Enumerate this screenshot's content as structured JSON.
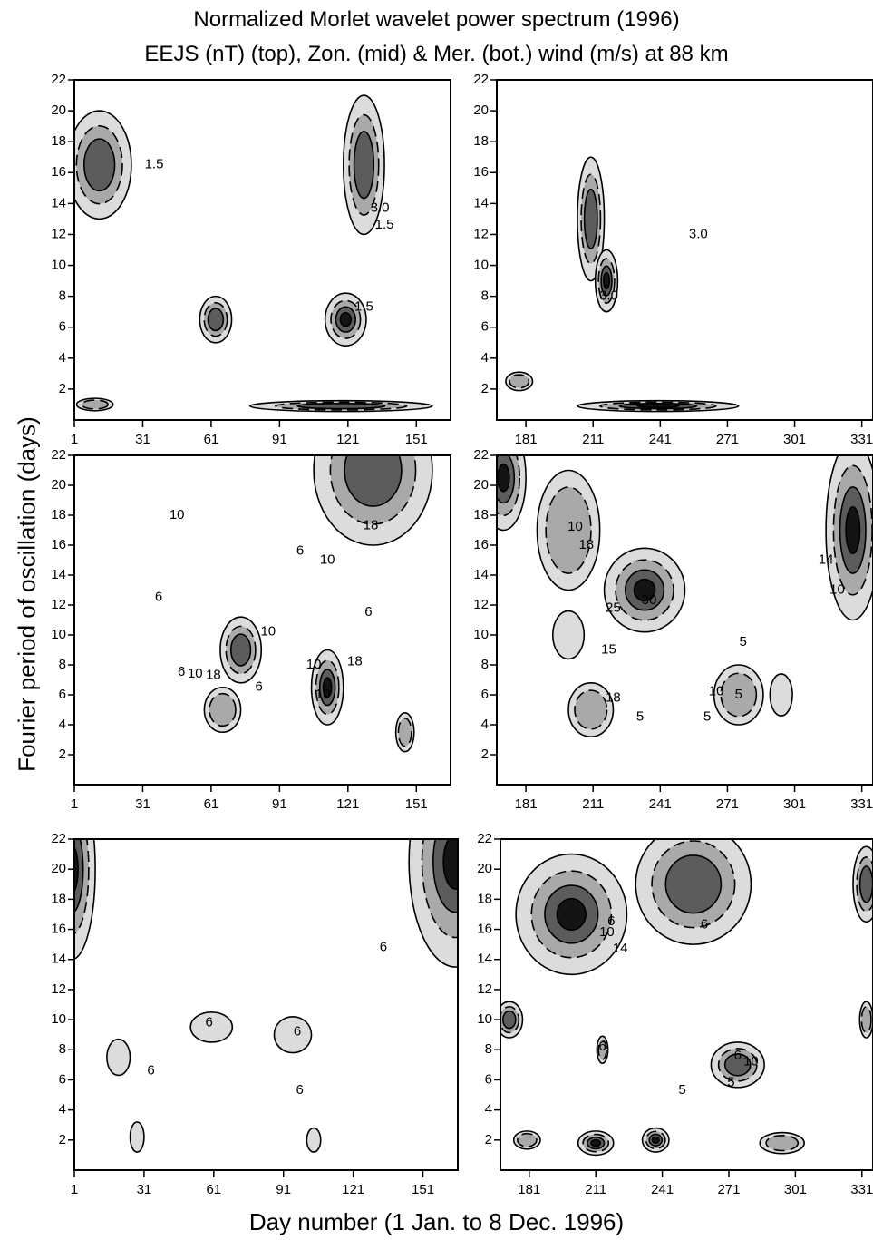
{
  "title": "Normalized Morlet wavelet power spectrum (1996)",
  "subtitle": "EEJS (nT) (top), Zon. (mid) & Mer. (bot.) wind (m/s) at 88 km",
  "ylabel": "Fourier period of oscillation (days)",
  "xlabel": "Day number (1 Jan. to 8 Dec. 1996)",
  "colors": {
    "shade_light": "#dcdcdc",
    "shade_mid": "#a9a9a9",
    "shade_dark": "#5c5c5c",
    "shade_darkest": "#141414",
    "line": "#000000"
  },
  "chart_data": [
    {
      "type": "heatmap",
      "panel": "top-left",
      "variable": "EEJS (nT)",
      "xlim": [
        1,
        166
      ],
      "ylim": [
        0,
        22
      ],
      "xticks": [
        "1",
        "31",
        "61",
        "91",
        "121",
        "151"
      ],
      "yticks": [
        "2",
        "4",
        "6",
        "8",
        "10",
        "12",
        "14",
        "16",
        "18",
        "20",
        "22"
      ],
      "peaks": [
        {
          "x": 12,
          "y": 16.5,
          "sx": 14,
          "sy": 3.5,
          "level": 2.5
        },
        {
          "x": 128,
          "y": 16.5,
          "sx": 9,
          "sy": 4.5,
          "level": 2.4
        },
        {
          "x": 120,
          "y": 6.5,
          "sx": 9,
          "sy": 1.7,
          "level": 4
        },
        {
          "x": 63,
          "y": 6.5,
          "sx": 7,
          "sy": 1.5,
          "level": 2.6
        },
        {
          "x": 118,
          "y": 0.9,
          "sx": 40,
          "sy": 0.35,
          "level": 3
        },
        {
          "x": 10,
          "y": 1,
          "sx": 8,
          "sy": 0.4,
          "level": 1.5
        }
      ],
      "contour_labels": [
        {
          "text": "1.5",
          "x": 36,
          "y": 16.5
        },
        {
          "text": "3.0",
          "x": 135,
          "y": 13.7
        },
        {
          "text": "1.5",
          "x": 137,
          "y": 12.6
        },
        {
          "text": "1.5",
          "x": 128,
          "y": 7.3
        }
      ]
    },
    {
      "type": "heatmap",
      "panel": "top-right",
      "variable": "EEJS (nT)",
      "xlim": [
        168,
        336
      ],
      "ylim": [
        0,
        22
      ],
      "xticks": [
        "181",
        "211",
        "241",
        "271",
        "301",
        "331"
      ],
      "yticks": [
        "2",
        "4",
        "6",
        "8",
        "10",
        "12",
        "14",
        "16",
        "18",
        "20",
        "22"
      ],
      "peaks": [
        {
          "x": 210,
          "y": 13,
          "sx": 6,
          "sy": 4,
          "level": 2.4
        },
        {
          "x": 217,
          "y": 9,
          "sx": 5,
          "sy": 2,
          "level": 3.2
        },
        {
          "x": 240,
          "y": 0.9,
          "sx": 36,
          "sy": 0.35,
          "level": 3
        },
        {
          "x": 178,
          "y": 2.5,
          "sx": 6,
          "sy": 0.6,
          "level": 1.6
        }
      ],
      "contour_labels": [
        {
          "text": "3.0",
          "x": 258,
          "y": 12
        },
        {
          "text": "3.0",
          "x": 218,
          "y": 8
        }
      ]
    },
    {
      "type": "heatmap",
      "panel": "middle-left",
      "variable": "Zonal wind (m/s)",
      "xlim": [
        1,
        166
      ],
      "ylim": [
        0,
        22
      ],
      "xticks": [
        "1",
        "31",
        "61",
        "91",
        "121",
        "151"
      ],
      "yticks": [
        "2",
        "4",
        "6",
        "8",
        "10",
        "12",
        "14",
        "16",
        "18",
        "20",
        "22"
      ],
      "peaks": [
        {
          "x": 132,
          "y": 21,
          "sx": 26,
          "sy": 5,
          "level": 28
        },
        {
          "x": 74,
          "y": 9,
          "sx": 9,
          "sy": 2.2,
          "level": 24
        },
        {
          "x": 112,
          "y": 6.5,
          "sx": 7,
          "sy": 2.5,
          "level": 36
        },
        {
          "x": 66,
          "y": 5,
          "sx": 8,
          "sy": 1.5,
          "level": 11
        },
        {
          "x": 146,
          "y": 3.5,
          "sx": 4,
          "sy": 1.3,
          "level": 11
        }
      ],
      "contour_labels": [
        {
          "text": "10",
          "x": 46,
          "y": 18
        },
        {
          "text": "18",
          "x": 131,
          "y": 17.3
        },
        {
          "text": "6",
          "x": 100,
          "y": 15.6
        },
        {
          "text": "10",
          "x": 112,
          "y": 15
        },
        {
          "text": "6",
          "x": 130,
          "y": 11.5
        },
        {
          "text": "6",
          "x": 38,
          "y": 12.5
        },
        {
          "text": "10",
          "x": 86,
          "y": 10.2
        },
        {
          "text": "6",
          "x": 48,
          "y": 7.5
        },
        {
          "text": "10",
          "x": 54,
          "y": 7.4
        },
        {
          "text": "18",
          "x": 62,
          "y": 7.3
        },
        {
          "text": "6",
          "x": 82,
          "y": 6.5
        },
        {
          "text": "10",
          "x": 106,
          "y": 8
        },
        {
          "text": "18",
          "x": 124,
          "y": 8.2
        },
        {
          "text": "10",
          "x": 110,
          "y": 6
        }
      ]
    },
    {
      "type": "heatmap",
      "panel": "middle-right",
      "variable": "Zonal wind (m/s)",
      "xlim": [
        168,
        336
      ],
      "ylim": [
        0,
        22
      ],
      "xticks": [
        "181",
        "211",
        "241",
        "271",
        "301",
        "331"
      ],
      "yticks": [
        "2",
        "4",
        "6",
        "8",
        "10",
        "12",
        "14",
        "16",
        "18",
        "20",
        "22"
      ],
      "peaks": [
        {
          "x": 171,
          "y": 20.5,
          "sx": 10,
          "sy": 3.5,
          "level": 38
        },
        {
          "x": 200,
          "y": 17,
          "sx": 14,
          "sy": 4,
          "level": 18
        },
        {
          "x": 234,
          "y": 13,
          "sx": 18,
          "sy": 2.8,
          "level": 32
        },
        {
          "x": 327,
          "y": 17,
          "sx": 12,
          "sy": 6,
          "level": 34
        },
        {
          "x": 210,
          "y": 5,
          "sx": 10,
          "sy": 1.8,
          "level": 14
        },
        {
          "x": 276,
          "y": 6,
          "sx": 11,
          "sy": 2,
          "level": 13
        },
        {
          "x": 295,
          "y": 6,
          "sx": 5,
          "sy": 1.4,
          "level": 9
        },
        {
          "x": 200,
          "y": 10,
          "sx": 7,
          "sy": 1.6,
          "level": 8
        }
      ],
      "contour_labels": [
        {
          "text": "10",
          "x": 203,
          "y": 17.2
        },
        {
          "text": "18",
          "x": 208,
          "y": 16
        },
        {
          "text": "25",
          "x": 220,
          "y": 11.8
        },
        {
          "text": "30",
          "x": 236,
          "y": 12.3
        },
        {
          "text": "15",
          "x": 218,
          "y": 9
        },
        {
          "text": "14",
          "x": 315,
          "y": 15
        },
        {
          "text": "10",
          "x": 320,
          "y": 13
        },
        {
          "text": "5",
          "x": 278,
          "y": 9.5
        },
        {
          "text": "10",
          "x": 266,
          "y": 6.2
        },
        {
          "text": "5",
          "x": 276,
          "y": 6
        },
        {
          "text": "5",
          "x": 262,
          "y": 4.5
        },
        {
          "text": "18",
          "x": 220,
          "y": 5.8
        },
        {
          "text": "5",
          "x": 232,
          "y": 4.5
        }
      ]
    },
    {
      "type": "heatmap",
      "panel": "bottom-left",
      "variable": "Meridional wind (m/s)",
      "xlim": [
        1,
        166
      ],
      "ylim": [
        0,
        22
      ],
      "xticks": [
        "1",
        "31",
        "61",
        "91",
        "121",
        "151"
      ],
      "yticks": [
        "2",
        "4",
        "6",
        "8",
        "10",
        "12",
        "14",
        "16",
        "18",
        "20",
        "22"
      ],
      "peaks": [
        {
          "x": 0,
          "y": 20,
          "sx": 10,
          "sy": 6,
          "level": 36
        },
        {
          "x": 165,
          "y": 20.5,
          "sx": 20,
          "sy": 7,
          "level": 42
        },
        {
          "x": 20,
          "y": 7.5,
          "sx": 5,
          "sy": 1.2,
          "level": 9
        },
        {
          "x": 28,
          "y": 2.2,
          "sx": 3,
          "sy": 1,
          "level": 12
        },
        {
          "x": 104,
          "y": 2,
          "sx": 3,
          "sy": 0.8,
          "level": 11
        },
        {
          "x": 95,
          "y": 9,
          "sx": 8,
          "sy": 1.2,
          "level": 7
        },
        {
          "x": 60,
          "y": 9.5,
          "sx": 9,
          "sy": 1,
          "level": 7
        }
      ],
      "contour_labels": [
        {
          "text": "6",
          "x": 134,
          "y": 14.8
        },
        {
          "text": "6",
          "x": 59,
          "y": 9.8
        },
        {
          "text": "6",
          "x": 97,
          "y": 9.2
        },
        {
          "text": "6",
          "x": 34,
          "y": 6.6
        },
        {
          "text": "6",
          "x": 98,
          "y": 5.3
        }
      ]
    },
    {
      "type": "heatmap",
      "panel": "bottom-right",
      "variable": "Meridional wind (m/s)",
      "xlim": [
        168,
        336
      ],
      "ylim": [
        0,
        22
      ],
      "xticks": [
        "181",
        "211",
        "241",
        "271",
        "301",
        "331"
      ],
      "yticks": [
        "2",
        "4",
        "6",
        "8",
        "10",
        "12",
        "14",
        "16",
        "18",
        "20",
        "22"
      ],
      "peaks": [
        {
          "x": 200,
          "y": 17,
          "sx": 25,
          "sy": 4,
          "level": 14
        },
        {
          "x": 255,
          "y": 19,
          "sx": 26,
          "sy": 4,
          "level": 8
        },
        {
          "x": 172,
          "y": 10,
          "sx": 6,
          "sy": 1.2,
          "level": 9
        },
        {
          "x": 275,
          "y": 7,
          "sx": 12,
          "sy": 1.5,
          "level": 10
        },
        {
          "x": 211,
          "y": 1.8,
          "sx": 8,
          "sy": 0.8,
          "level": 12
        },
        {
          "x": 238,
          "y": 2,
          "sx": 6,
          "sy": 0.8,
          "level": 12
        },
        {
          "x": 333,
          "y": 19,
          "sx": 6,
          "sy": 2.5,
          "level": 10
        },
        {
          "x": 333,
          "y": 10,
          "sx": 3,
          "sy": 1.2,
          "level": 7
        },
        {
          "x": 295,
          "y": 1.8,
          "sx": 10,
          "sy": 0.7,
          "level": 7
        },
        {
          "x": 180,
          "y": 2,
          "sx": 6,
          "sy": 0.6,
          "level": 7
        },
        {
          "x": 214,
          "y": 8,
          "sx": 2.5,
          "sy": 0.9,
          "level": 7
        }
      ],
      "contour_labels": [
        {
          "text": "6",
          "x": 218,
          "y": 16.5
        },
        {
          "text": "10",
          "x": 216,
          "y": 15.8
        },
        {
          "text": "14",
          "x": 222,
          "y": 14.7
        },
        {
          "text": "6",
          "x": 260,
          "y": 16.3
        },
        {
          "text": "6",
          "x": 214,
          "y": 8.2
        },
        {
          "text": "6",
          "x": 275,
          "y": 7.6
        },
        {
          "text": "10",
          "x": 281,
          "y": 7.2
        },
        {
          "text": "5",
          "x": 272,
          "y": 5.8
        },
        {
          "text": "5",
          "x": 250,
          "y": 5.3
        }
      ]
    }
  ]
}
